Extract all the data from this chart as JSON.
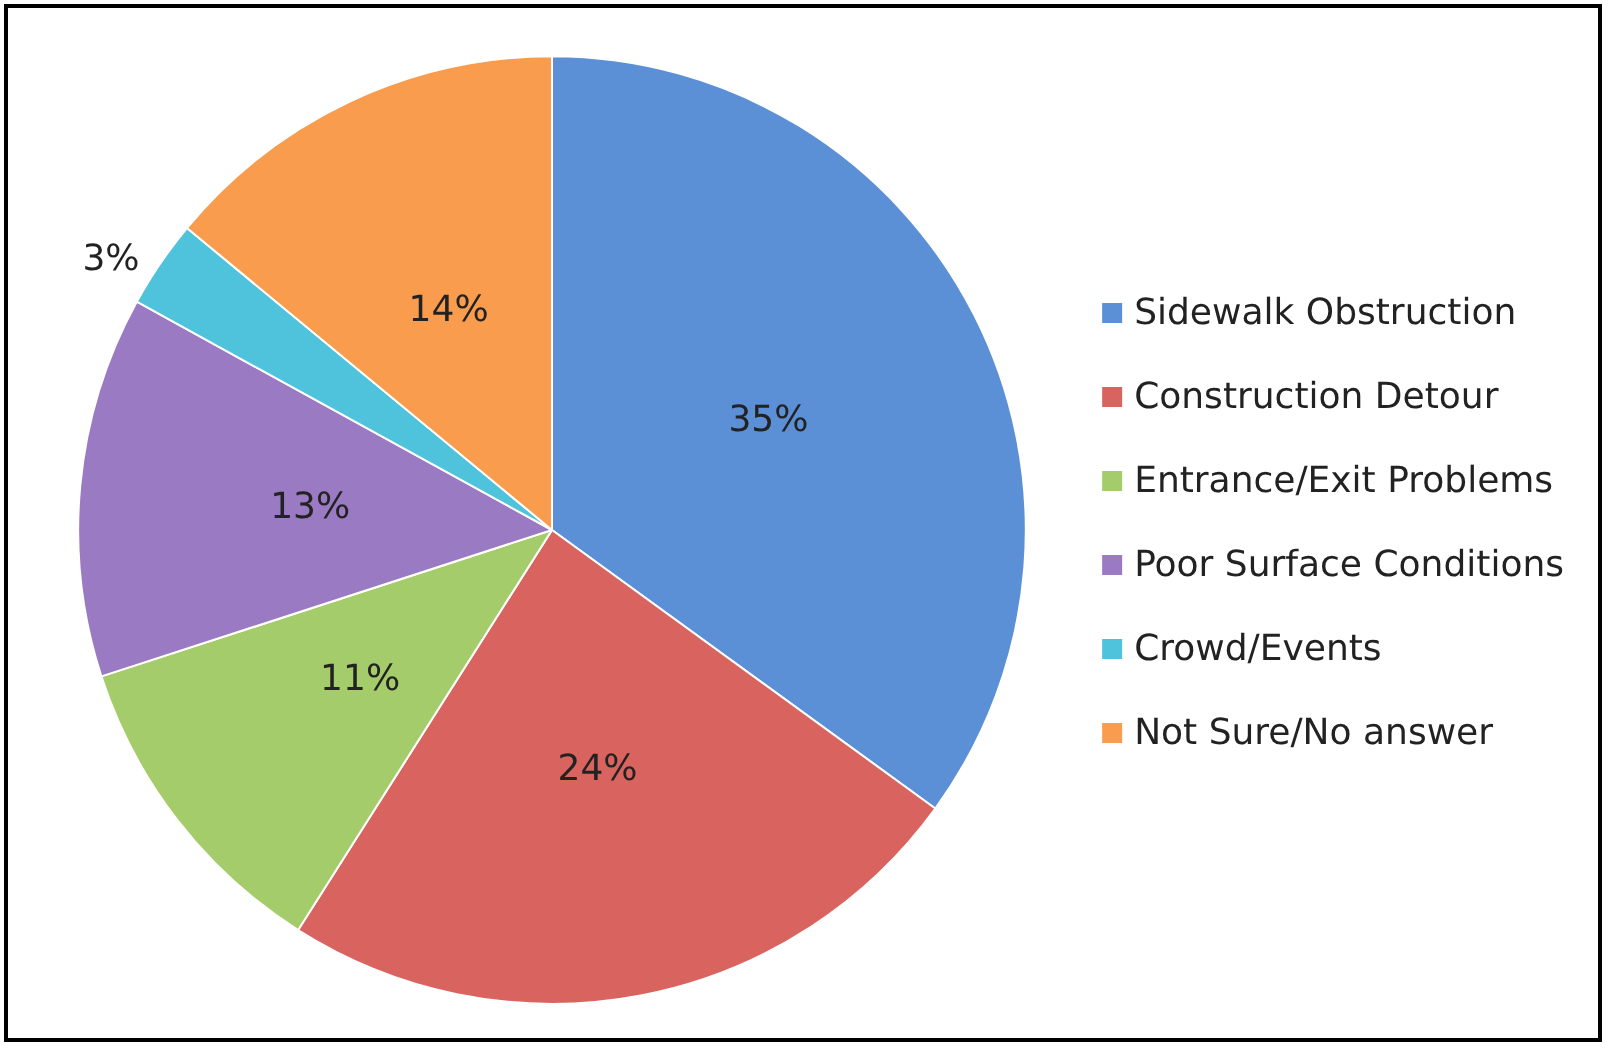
{
  "chart_data": {
    "type": "pie",
    "categories": [
      "Sidewalk Obstruction",
      "Construction Detour",
      "Entrance/Exit Problems",
      "Poor Surface Conditions",
      "Crowd/Events",
      "Not Sure/No answer"
    ],
    "values": [
      35,
      24,
      11,
      13,
      3,
      14
    ],
    "colors": [
      "#5b8fd6",
      "#d9645f",
      "#a5cc6a",
      "#9a7ac2",
      "#4fc2dc",
      "#f99c4d"
    ],
    "value_labels": [
      "35%",
      "24%",
      "11%",
      "13%",
      "3%",
      "14%"
    ],
    "legend": "right"
  }
}
